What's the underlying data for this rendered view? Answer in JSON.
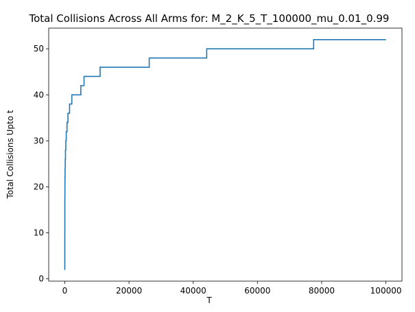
{
  "chart_data": {
    "type": "line",
    "title": "Total Collisions Across All Arms for: M_2_K_5_T_100000_mu_0.01_0.99",
    "xlabel": "T",
    "ylabel": "Total Collisions Upto t",
    "xlim": [
      -5000,
      105000
    ],
    "ylim": [
      -0.5,
      54.5
    ],
    "xticks": [
      0,
      20000,
      40000,
      60000,
      80000,
      100000
    ],
    "xtick_labels": [
      "0",
      "20000",
      "40000",
      "60000",
      "80000",
      "100000"
    ],
    "yticks": [
      0,
      10,
      20,
      30,
      40,
      50
    ],
    "ytick_labels": [
      "0",
      "10",
      "20",
      "30",
      "40",
      "50"
    ],
    "grid": false,
    "line_style": "step",
    "series": [
      {
        "color": "#1f77b4",
        "x": [
          0,
          10,
          30,
          60,
          100,
          150,
          220,
          320,
          460,
          700,
          1000,
          1500,
          2200,
          5000,
          6000,
          11000,
          26300,
          44200,
          77500,
          100000
        ],
        "y": [
          2,
          10,
          18,
          22,
          24,
          26,
          28,
          30,
          32,
          34,
          36,
          38,
          40,
          42,
          44,
          46,
          48,
          50,
          52,
          52
        ]
      }
    ]
  }
}
